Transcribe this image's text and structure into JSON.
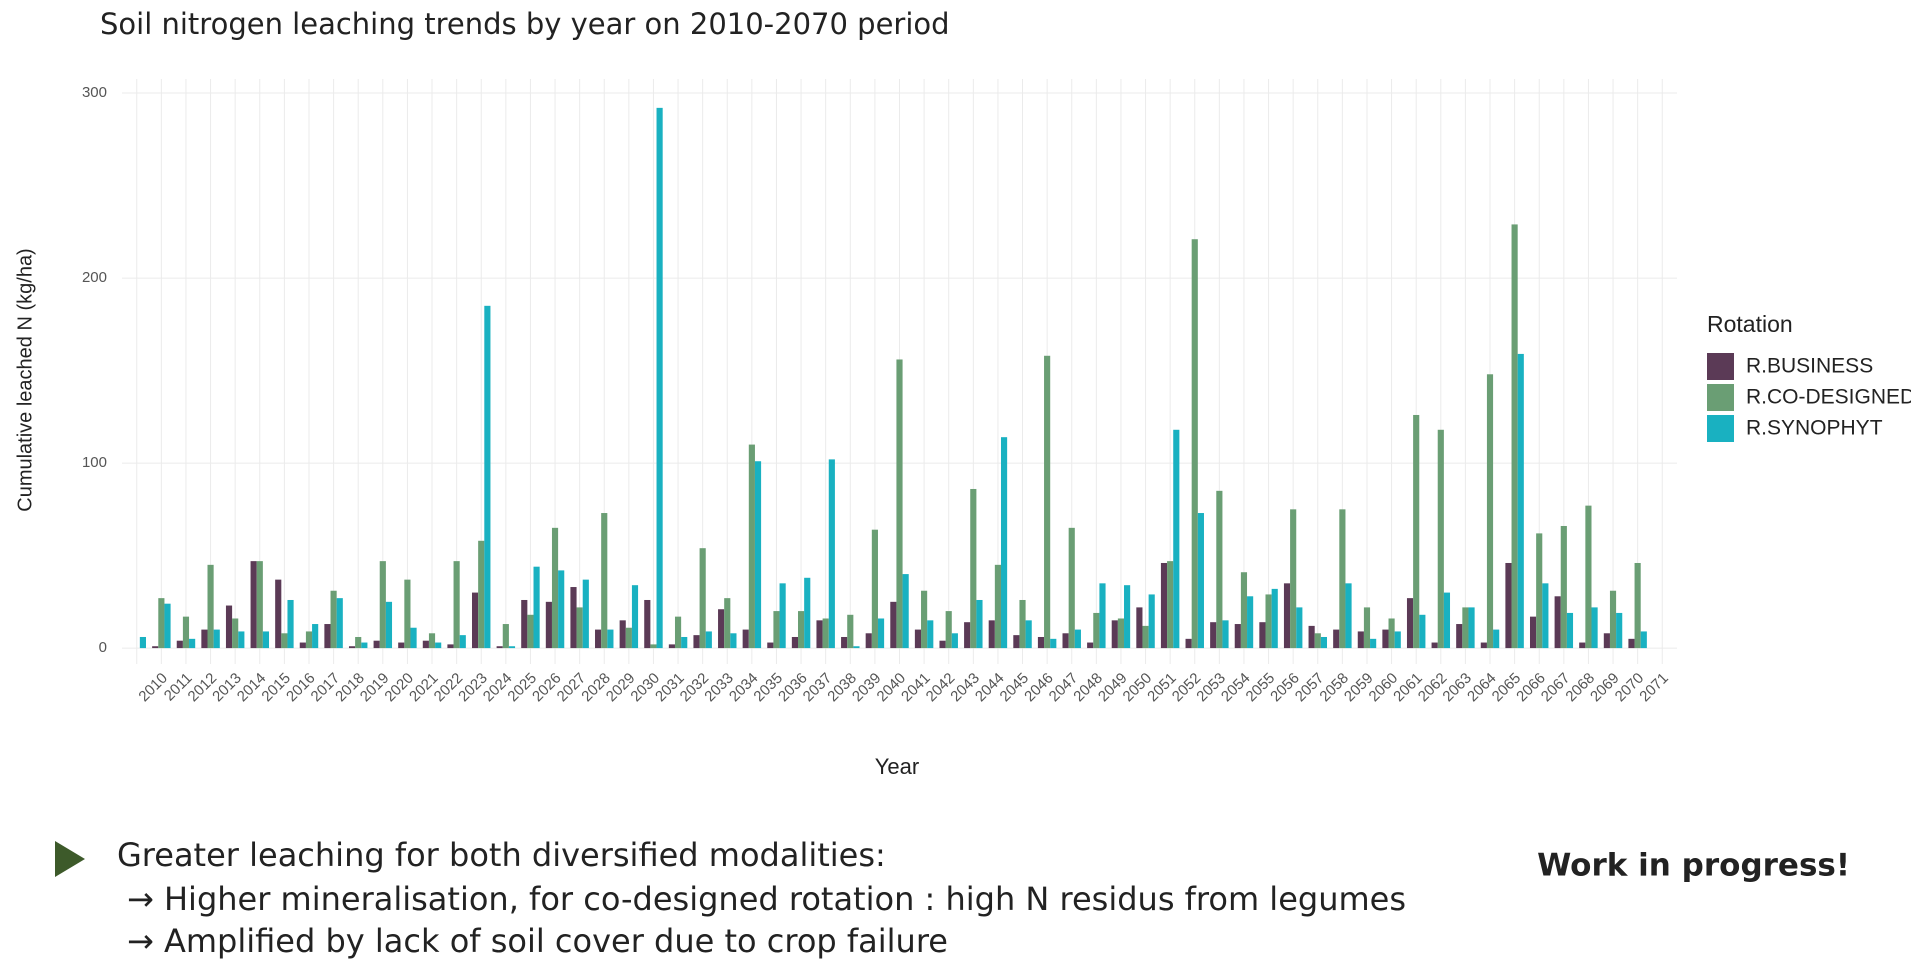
{
  "chart_data": {
    "type": "bar",
    "title": "Soil nitrogen leaching trends by year on 2010-2070 period",
    "x_label": "Year",
    "y_label": "Cumulative leached N (kg/ha)",
    "legend_title": "Rotation",
    "categories": [
      null,
      "2010",
      "2011",
      "2012",
      "2013",
      "2014",
      "2015",
      "2016",
      "2017",
      "2018",
      "2019",
      "2020",
      "2021",
      "2022",
      "2023",
      "2024",
      "2025",
      "2026",
      "2027",
      "2028",
      "2029",
      "2030",
      "2031",
      "2032",
      "2033",
      "2034",
      "2035",
      "2036",
      "2037",
      "2038",
      "2039",
      "2040",
      "2041",
      "2042",
      "2043",
      "2044",
      "2045",
      "2046",
      "2047",
      "2048",
      "2049",
      "2050",
      "2051",
      "2052",
      "2053",
      "2054",
      "2055",
      "2056",
      "2057",
      "2058",
      "2059",
      "2060",
      "2061",
      "2062",
      "2063",
      "2064",
      "2065",
      "2066",
      "2067",
      "2068",
      "2069",
      "2070",
      "2071"
    ],
    "series": [
      {
        "name": "R.BUSINESS",
        "color": "#5b3a56",
        "values": [
          null,
          1,
          4,
          10,
          23,
          47,
          37,
          3,
          13,
          1,
          4,
          3,
          4,
          2,
          30,
          1,
          26,
          25,
          33,
          10,
          15,
          26,
          2,
          7,
          21,
          10,
          3,
          6,
          15,
          6,
          8,
          25,
          10,
          4,
          14,
          15,
          7,
          6,
          8,
          3,
          15,
          22,
          46,
          5,
          14,
          13,
          14,
          35,
          12,
          10,
          9,
          10,
          27,
          3,
          13,
          3,
          46,
          17,
          28,
          3,
          8,
          5,
          null
        ]
      },
      {
        "name": "R.CO-DESIGNED",
        "color": "#6a9e74",
        "values": [
          null,
          27,
          17,
          45,
          16,
          47,
          8,
          9,
          31,
          6,
          47,
          37,
          8,
          47,
          58,
          13,
          18,
          65,
          22,
          73,
          11,
          2,
          17,
          54,
          27,
          110,
          20,
          20,
          16,
          18,
          64,
          156,
          31,
          20,
          86,
          45,
          26,
          158,
          65,
          19,
          16,
          12,
          47,
          221,
          85,
          41,
          29,
          75,
          8,
          75,
          22,
          16,
          126,
          118,
          22,
          148,
          229,
          62,
          66,
          77,
          31,
          46,
          null
        ]
      },
      {
        "name": "R.SYNOPHYT",
        "color": "#19b1c1",
        "values": [
          6,
          24,
          5,
          10,
          9,
          9,
          26,
          13,
          27,
          3,
          25,
          11,
          3,
          7,
          185,
          1,
          44,
          42,
          37,
          10,
          34,
          292,
          6,
          9,
          8,
          101,
          35,
          38,
          102,
          1,
          16,
          40,
          15,
          8,
          26,
          114,
          15,
          5,
          10,
          35,
          34,
          29,
          118,
          73,
          15,
          28,
          32,
          22,
          6,
          35,
          5,
          9,
          18,
          30,
          22,
          10,
          159,
          35,
          19,
          22,
          19,
          9,
          null
        ]
      }
    ],
    "ylim": [
      -8.6,
      307.6
    ],
    "yticks": [
      0,
      100,
      200,
      300
    ],
    "grid": true,
    "legend": "right"
  },
  "notes": {
    "heading": "Greater leaching for both diversified modalities:",
    "bullets": [
      "→ Higher mineralisation, for co-designed rotation : high N residus from legumes",
      "→ Amplified by lack of soil cover due to crop failure"
    ],
    "badge": "Work in progress!"
  }
}
